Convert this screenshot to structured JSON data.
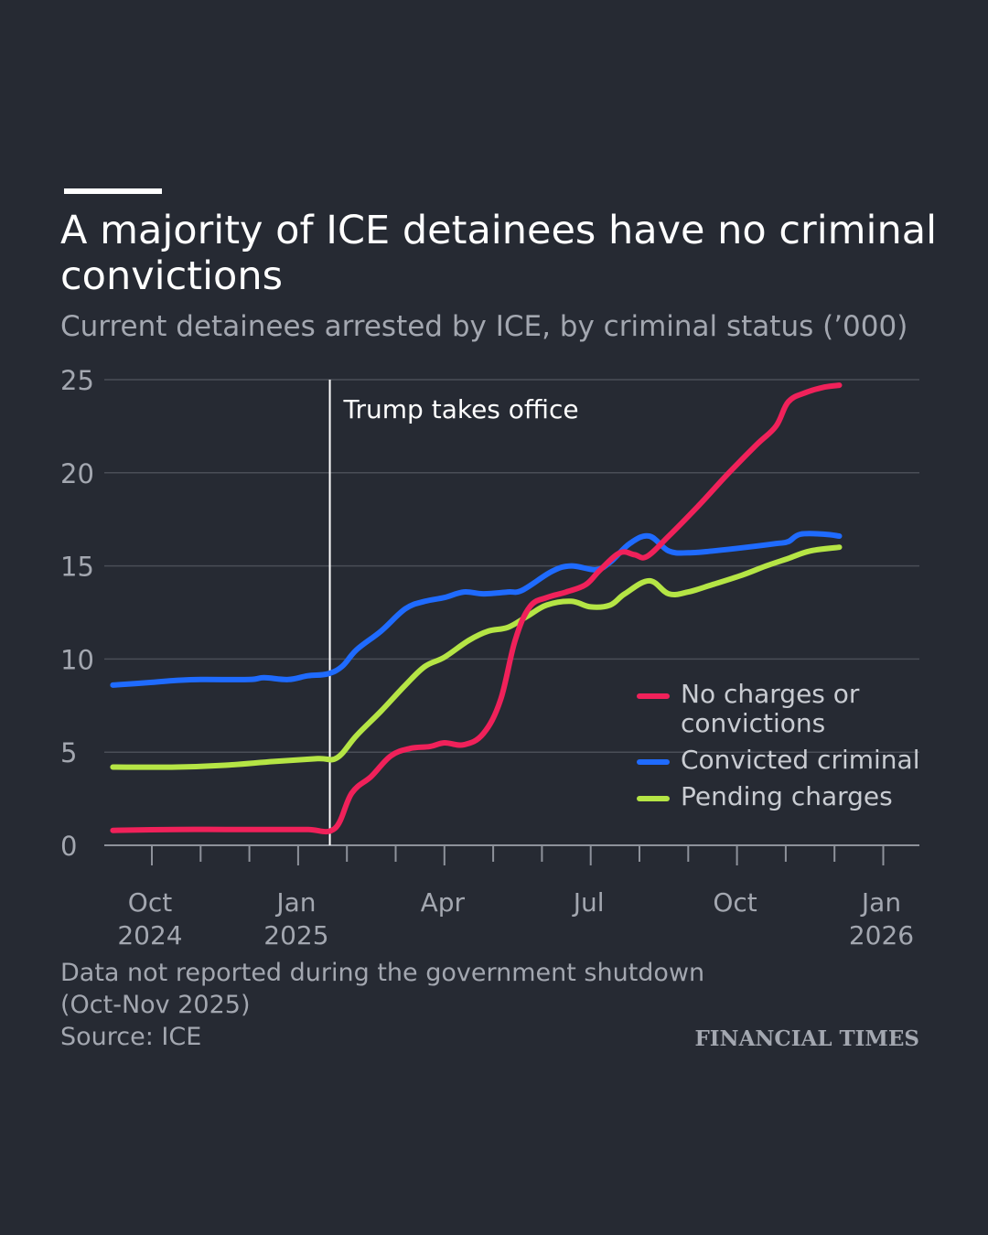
{
  "header": {
    "title": "A majority of ICE detainees have no criminal convictions",
    "subtitle": "Current detainees arrested by ICE, by criminal status (’000)"
  },
  "footer": {
    "note_line1": "Data not reported during the government shutdown",
    "note_line2": "(Oct-Nov 2025)",
    "source": "Source: ICE",
    "brand": "FINANCIAL TIMES"
  },
  "colors": {
    "background": "#262a33",
    "no_charges": "#f0215a",
    "convicted": "#1f6bff",
    "pending": "#b5e545",
    "grid": "#4a4e57",
    "axis": "#8e929b"
  },
  "chart_data": {
    "type": "line",
    "title": "A majority of ICE detainees have no criminal convictions",
    "subtitle": "Current detainees arrested by ICE, by criminal status (’000)",
    "xlabel": "",
    "ylabel": "",
    "x_range": [
      -0.9,
      15.15
    ],
    "ylim": [
      0,
      25
    ],
    "yticks": [
      0,
      5,
      10,
      15,
      20,
      25
    ],
    "xtick_labels": [
      {
        "pos": 0,
        "line1": "Oct",
        "line2": "2024"
      },
      {
        "pos": 3,
        "line1": "Jan",
        "line2": "2025"
      },
      {
        "pos": 6,
        "line1": "Apr",
        "line2": ""
      },
      {
        "pos": 9,
        "line1": "Jul",
        "line2": ""
      },
      {
        "pos": 12,
        "line1": "Oct",
        "line2": ""
      },
      {
        "pos": 15,
        "line1": "Jan",
        "line2": "2026"
      }
    ],
    "annotation": {
      "label": "Trump takes office",
      "x": 3.65
    },
    "legend_position": "right",
    "series": [
      {
        "name": "No charges or convictions",
        "color": "#f0215a",
        "points": [
          [
            -0.8,
            0.8
          ],
          [
            0.5,
            0.85
          ],
          [
            1.5,
            0.85
          ],
          [
            2.5,
            0.85
          ],
          [
            3.2,
            0.85
          ],
          [
            3.75,
            0.9
          ],
          [
            4.1,
            2.8
          ],
          [
            4.5,
            3.7
          ],
          [
            4.9,
            4.8
          ],
          [
            5.3,
            5.2
          ],
          [
            5.7,
            5.3
          ],
          [
            6.0,
            5.5
          ],
          [
            6.4,
            5.4
          ],
          [
            6.8,
            6.0
          ],
          [
            7.15,
            7.8
          ],
          [
            7.45,
            11.0
          ],
          [
            7.75,
            12.8
          ],
          [
            8.1,
            13.3
          ],
          [
            8.5,
            13.6
          ],
          [
            8.9,
            14.0
          ],
          [
            9.2,
            14.8
          ],
          [
            9.6,
            15.7
          ],
          [
            9.9,
            15.6
          ],
          [
            10.15,
            15.5
          ],
          [
            10.6,
            16.6
          ],
          [
            11.2,
            18.2
          ],
          [
            11.8,
            19.9
          ],
          [
            12.4,
            21.5
          ],
          [
            12.8,
            22.5
          ],
          [
            13.05,
            23.8
          ],
          [
            13.4,
            24.3
          ],
          [
            13.8,
            24.6
          ],
          [
            14.1,
            24.7
          ]
        ]
      },
      {
        "name": "Convicted criminal",
        "color": "#1f6bff",
        "points": [
          [
            -0.8,
            8.6
          ],
          [
            0.0,
            8.75
          ],
          [
            0.5,
            8.85
          ],
          [
            1.0,
            8.9
          ],
          [
            2.0,
            8.9
          ],
          [
            2.3,
            9.0
          ],
          [
            2.8,
            8.9
          ],
          [
            3.2,
            9.1
          ],
          [
            3.6,
            9.2
          ],
          [
            3.9,
            9.6
          ],
          [
            4.2,
            10.5
          ],
          [
            4.7,
            11.5
          ],
          [
            5.2,
            12.7
          ],
          [
            5.6,
            13.1
          ],
          [
            6.0,
            13.3
          ],
          [
            6.4,
            13.6
          ],
          [
            6.8,
            13.5
          ],
          [
            7.3,
            13.6
          ],
          [
            7.6,
            13.7
          ],
          [
            8.2,
            14.7
          ],
          [
            8.6,
            15.0
          ],
          [
            9.1,
            14.8
          ],
          [
            9.4,
            15.2
          ],
          [
            9.8,
            16.2
          ],
          [
            10.2,
            16.6
          ],
          [
            10.6,
            15.8
          ],
          [
            11.0,
            15.7
          ],
          [
            11.5,
            15.8
          ],
          [
            12.2,
            16.0
          ],
          [
            12.8,
            16.2
          ],
          [
            13.05,
            16.3
          ],
          [
            13.3,
            16.7
          ],
          [
            13.8,
            16.7
          ],
          [
            14.1,
            16.6
          ]
        ]
      },
      {
        "name": "Pending charges",
        "color": "#b5e545",
        "points": [
          [
            -0.8,
            4.2
          ],
          [
            0.5,
            4.2
          ],
          [
            1.5,
            4.3
          ],
          [
            2.5,
            4.5
          ],
          [
            3.4,
            4.65
          ],
          [
            3.8,
            4.7
          ],
          [
            4.2,
            5.9
          ],
          [
            4.7,
            7.2
          ],
          [
            5.2,
            8.6
          ],
          [
            5.6,
            9.6
          ],
          [
            6.0,
            10.1
          ],
          [
            6.5,
            11.0
          ],
          [
            6.9,
            11.5
          ],
          [
            7.3,
            11.7
          ],
          [
            7.7,
            12.3
          ],
          [
            8.1,
            12.9
          ],
          [
            8.6,
            13.1
          ],
          [
            9.0,
            12.8
          ],
          [
            9.4,
            12.9
          ],
          [
            9.7,
            13.5
          ],
          [
            10.2,
            14.2
          ],
          [
            10.6,
            13.5
          ],
          [
            11.0,
            13.6
          ],
          [
            11.5,
            14.0
          ],
          [
            12.1,
            14.5
          ],
          [
            12.6,
            15.0
          ],
          [
            13.05,
            15.4
          ],
          [
            13.5,
            15.8
          ],
          [
            14.1,
            16.0
          ]
        ]
      }
    ]
  }
}
